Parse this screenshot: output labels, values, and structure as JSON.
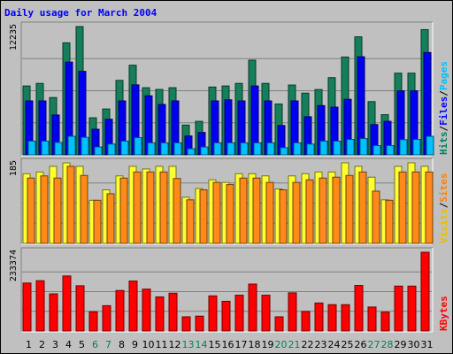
{
  "chart_data": {
    "type": "bar",
    "title": "Daily usage for March 2004",
    "categories": [
      "1",
      "2",
      "3",
      "4",
      "5",
      "6",
      "7",
      "8",
      "9",
      "10",
      "11",
      "12",
      "13",
      "14",
      "15",
      "16",
      "17",
      "18",
      "19",
      "20",
      "21",
      "22",
      "23",
      "24",
      "25",
      "26",
      "27",
      "28",
      "29",
      "30",
      "31"
    ],
    "weekend_days": [
      "6",
      "7",
      "13",
      "14",
      "20",
      "21",
      "27",
      "28"
    ],
    "panels": [
      {
        "ymax_label": "12235",
        "ylim": [
          0,
          12235
        ],
        "labels": [
          {
            "text": "Hits",
            "color": "#00805C"
          },
          {
            "text": "/",
            "color": "#000000"
          },
          {
            "text": "Files",
            "color": "#0000FF"
          },
          {
            "text": "/",
            "color": "#000000"
          },
          {
            "text": "Pages",
            "color": "#00C0FF"
          }
        ],
        "series": [
          {
            "name": "Hits",
            "color": "#157F5C",
            "values": [
              6573,
              6815,
              5468,
              10684,
              12235,
              3535,
              4377,
              7103,
              8548,
              6404,
              6239,
              6404,
              2844,
              3199,
              6468,
              6572,
              6815,
              9033,
              6815,
              4850,
              6660,
              5886,
              6230,
              7364,
              9330,
              11255,
              5079,
              3833,
              7794,
              7794,
              11943
            ]
          },
          {
            "name": "Files",
            "color": "#0000F0",
            "values": [
              5147,
              5147,
              3803,
              8845,
              7962,
              2445,
              3396,
              5147,
              6675,
              5629,
              4806,
              5147,
              1800,
              2140,
              5147,
              5250,
              5147,
              6571,
              5147,
              2800,
              5147,
              3637,
              4700,
              4548,
              5300,
              9355,
              2889,
              3199,
              6104,
              6104,
              9758
            ]
          },
          {
            "name": "Pages",
            "color": "#00C0FF",
            "values": [
              1311,
              1311,
              1186,
              1770,
              1671,
              755,
              1032,
              1311,
              1639,
              1147,
              1147,
              1147,
              583,
              751,
              1147,
              1147,
              1147,
              1147,
              1147,
              683,
              1147,
              1032,
              1311,
              1311,
              1472,
              1554,
              885,
              885,
              1447,
              1472,
              1770
            ]
          }
        ]
      },
      {
        "ymax_label": "185",
        "ylim": [
          0,
          185
        ],
        "labels": [
          {
            "text": "Visits",
            "color": "#E6C000"
          },
          {
            "text": "/",
            "color": "#000000"
          },
          {
            "text": "Sites",
            "color": "#FF8000"
          }
        ],
        "series": [
          {
            "name": "Visits",
            "color": "#FFFF33",
            "values": [
              160,
              164,
              177,
              185,
              177,
              99,
              123,
              155,
              177,
              171,
              177,
              177,
              106,
              126,
              146,
              140,
              160,
              160,
              155,
              125,
              155,
              160,
              164,
              164,
              185,
              177,
              152,
              100,
              177,
              185,
              177
            ]
          },
          {
            "name": "Sites",
            "color": "#FF8A1A",
            "values": [
              150,
              155,
              150,
              177,
              156,
              99,
              114,
              150,
              164,
              164,
              164,
              149,
              100,
              123,
              140,
              135,
              150,
              150,
              140,
              123,
              140,
              146,
              150,
              152,
              156,
              164,
              120,
              99,
              164,
              164,
              164
            ]
          }
        ]
      },
      {
        "ymax_label": "233374",
        "ylim": [
          0,
          233374
        ],
        "labels": [
          {
            "text": "KBytes",
            "color": "#FF0000"
          }
        ],
        "series": [
          {
            "name": "KBytes",
            "color": "#FF0000",
            "values": [
              142000,
              149000,
              110000,
              163000,
              134000,
              57000,
              75000,
              120000,
              148000,
              124000,
              101000,
              112000,
              42000,
              44000,
              104000,
              88000,
              106000,
              139000,
              106000,
              42000,
              113000,
              58000,
              83000,
              78000,
              78000,
              135000,
              71000,
              56000,
              133000,
              133000,
              233374
            ]
          }
        ]
      }
    ]
  }
}
